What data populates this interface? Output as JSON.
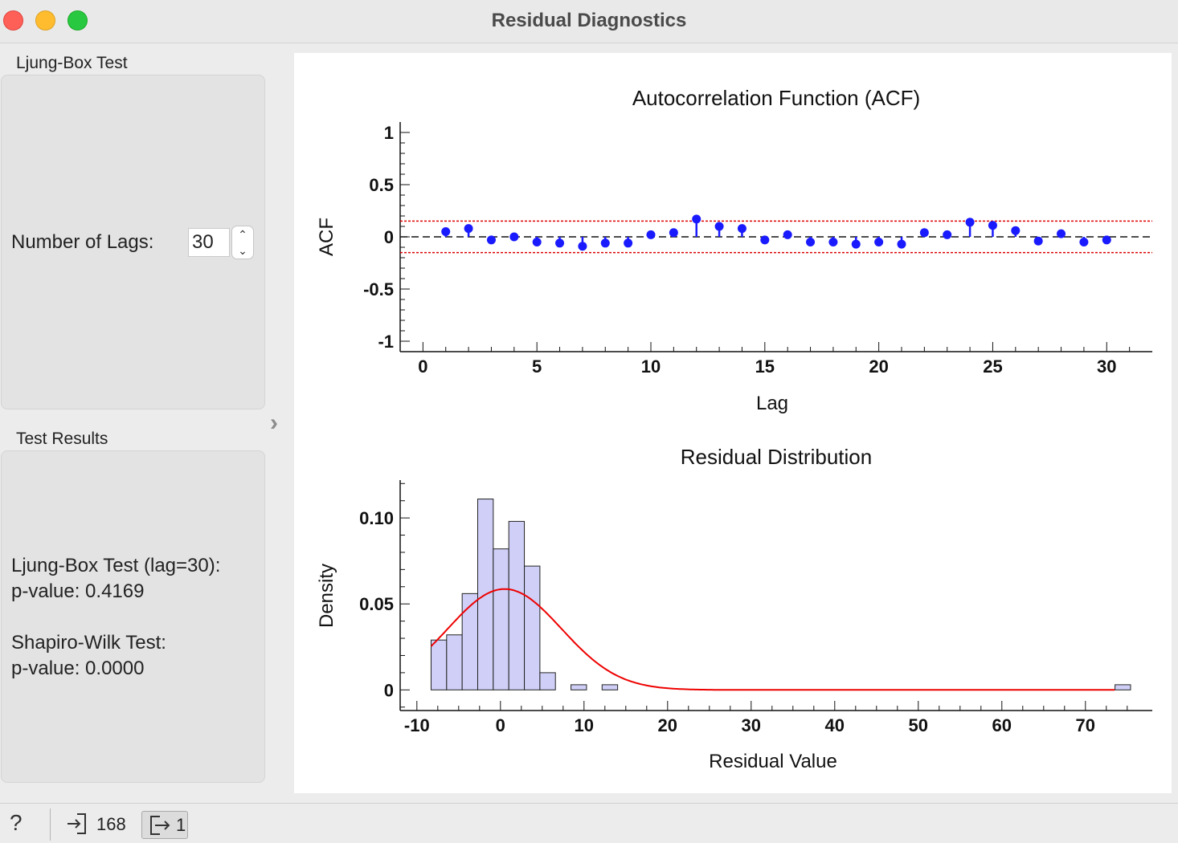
{
  "window": {
    "title": "Residual Diagnostics"
  },
  "sidebar": {
    "ljung_box_group_label": "Ljung-Box Test",
    "lags_label": "Number of Lags:",
    "lags_value": "30",
    "test_results_group_label": "Test Results",
    "results": {
      "ljung_box_line": "Ljung-Box Test (lag=30):",
      "ljung_box_pvalue": "p-value: 0.4169",
      "shapiro_line": "Shapiro-Wilk Test:",
      "shapiro_pvalue": "p-value: 0.0000"
    }
  },
  "statusbar": {
    "input_count": "168",
    "output_count": "1"
  },
  "colors": {
    "stem": "#1a1aff",
    "confidence": "#dd0000",
    "hist_fill": "#cfcff7",
    "normal_curve": "#ee0000"
  },
  "chart_data": [
    {
      "type": "stem",
      "title": "Autocorrelation Function (ACF)",
      "xlabel": "Lag",
      "ylabel": "ACF",
      "xlim": [
        -1,
        32
      ],
      "ylim": [
        -1.1,
        1.1
      ],
      "x_ticks": [
        0,
        5,
        10,
        15,
        20,
        25,
        30
      ],
      "y_ticks": [
        1,
        0.5,
        0,
        -0.5,
        -1
      ],
      "y_tick_labels": [
        "1",
        "0.5",
        "0",
        "-0.5",
        "-1"
      ],
      "confidence_bounds": [
        0.151,
        -0.151
      ],
      "lags": [
        1,
        2,
        3,
        4,
        5,
        6,
        7,
        8,
        9,
        10,
        11,
        12,
        13,
        14,
        15,
        16,
        17,
        18,
        19,
        20,
        21,
        22,
        23,
        24,
        25,
        26,
        27,
        28,
        29,
        30
      ],
      "values": [
        0.05,
        0.08,
        -0.03,
        0.0,
        -0.05,
        -0.06,
        -0.09,
        -0.06,
        -0.06,
        0.02,
        0.04,
        0.17,
        0.1,
        0.08,
        -0.03,
        0.02,
        -0.05,
        -0.05,
        -0.07,
        -0.05,
        -0.07,
        0.04,
        0.02,
        0.14,
        0.11,
        0.06,
        -0.04,
        0.03,
        -0.05,
        -0.03
      ]
    },
    {
      "type": "histogram",
      "title": "Residual Distribution",
      "xlabel": "Residual Value",
      "ylabel": "Density",
      "xlim": [
        -12,
        78
      ],
      "ylim": [
        -0.012,
        0.122
      ],
      "x_ticks": [
        -10,
        0,
        10,
        20,
        30,
        40,
        50,
        60,
        70
      ],
      "y_ticks": [
        0,
        0.05,
        0.1
      ],
      "y_tick_labels": [
        "0",
        "0.05",
        "0.10"
      ],
      "bin_start": -8.3,
      "bin_width": 1.86,
      "densities": [
        0.029,
        0.032,
        0.056,
        0.111,
        0.082,
        0.098,
        0.072,
        0.01,
        0.0,
        0.003,
        0.0,
        0.003,
        0.0,
        0.0,
        0.0,
        0.0,
        0.0,
        0.0,
        0.0,
        0.0,
        0.0,
        0.0,
        0.0,
        0.0,
        0.0,
        0.0,
        0.0,
        0.0,
        0.0,
        0.0,
        0.0,
        0.0,
        0.0,
        0.0,
        0.0,
        0.0,
        0.0,
        0.0,
        0.0,
        0.0,
        0.0,
        0.0,
        0.0,
        0.0,
        0.003
      ],
      "normal_fit": {
        "mean": 0.5,
        "sd": 6.8,
        "x_range": [
          -8.3,
          73.5
        ]
      }
    }
  ]
}
